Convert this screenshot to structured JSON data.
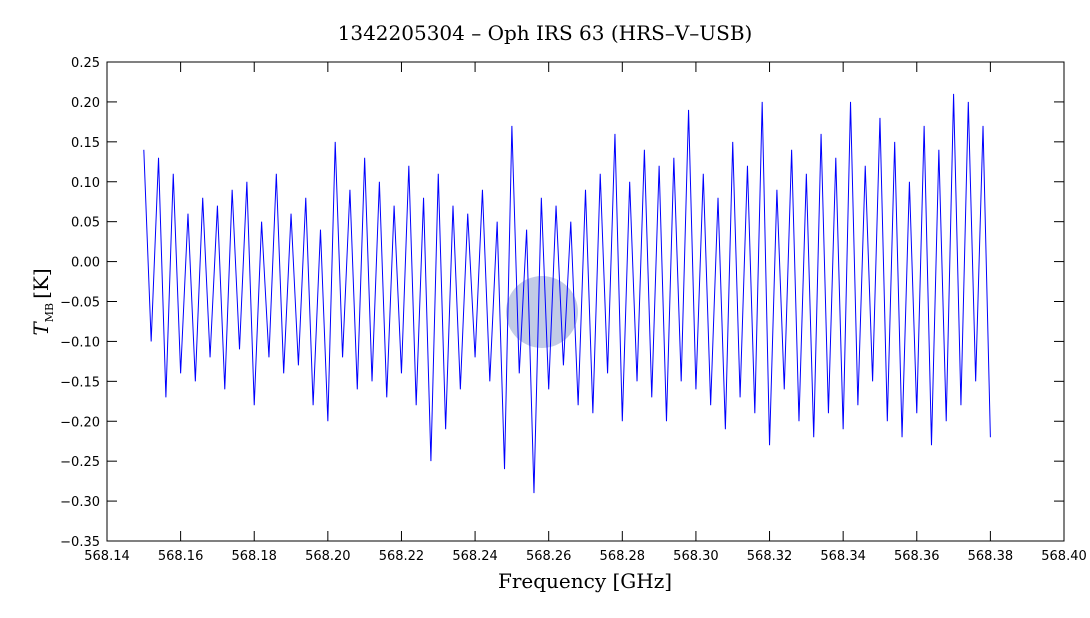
{
  "chart_data": {
    "type": "line",
    "title": "1342205304 – Oph IRS 63 (HRS–V–USB)",
    "xlabel": "Frequency [GHz]",
    "ylabel": "T",
    "ylabel_subscript": "MB",
    "ylabel_unit": "[K]",
    "x": [
      568.15,
      568.152,
      568.154,
      568.156,
      568.158,
      568.16,
      568.162,
      568.164,
      568.166,
      568.168,
      568.17,
      568.172,
      568.174,
      568.176,
      568.178,
      568.18,
      568.182,
      568.184,
      568.186,
      568.188,
      568.19,
      568.192,
      568.194,
      568.196,
      568.198,
      568.2,
      568.202,
      568.204,
      568.206,
      568.208,
      568.21,
      568.212,
      568.214,
      568.216,
      568.218,
      568.22,
      568.222,
      568.224,
      568.226,
      568.228,
      568.23,
      568.232,
      568.234,
      568.236,
      568.238,
      568.24,
      568.242,
      568.244,
      568.246,
      568.248,
      568.25,
      568.252,
      568.254,
      568.256,
      568.258,
      568.26,
      568.262,
      568.264,
      568.266,
      568.268,
      568.27,
      568.272,
      568.274,
      568.276,
      568.278,
      568.28,
      568.282,
      568.284,
      568.286,
      568.288,
      568.29,
      568.292,
      568.294,
      568.296,
      568.298,
      568.3,
      568.302,
      568.304,
      568.306,
      568.308,
      568.31,
      568.312,
      568.314,
      568.316,
      568.318,
      568.32,
      568.322,
      568.324,
      568.326,
      568.328,
      568.33,
      568.332,
      568.334,
      568.336,
      568.338,
      568.34,
      568.342,
      568.344,
      568.346,
      568.348,
      568.35,
      568.352,
      568.354,
      568.356,
      568.358,
      568.36,
      568.362,
      568.364,
      568.366,
      568.368,
      568.37,
      568.372,
      568.374,
      568.376,
      568.378,
      568.38
    ],
    "series": [
      {
        "color": "#0000ff",
        "values": [
          0.14,
          -0.1,
          0.13,
          -0.17,
          0.11,
          -0.14,
          0.06,
          -0.15,
          0.08,
          -0.12,
          0.07,
          -0.16,
          0.09,
          -0.11,
          0.1,
          -0.18,
          0.05,
          -0.12,
          0.11,
          -0.14,
          0.06,
          -0.13,
          0.08,
          -0.18,
          0.04,
          -0.2,
          0.15,
          -0.12,
          0.09,
          -0.16,
          0.13,
          -0.15,
          0.1,
          -0.17,
          0.07,
          -0.14,
          0.12,
          -0.18,
          0.08,
          -0.25,
          0.11,
          -0.21,
          0.07,
          -0.16,
          0.06,
          -0.12,
          0.09,
          -0.15,
          0.05,
          -0.26,
          0.17,
          -0.14,
          0.04,
          -0.29,
          0.08,
          -0.16,
          0.07,
          -0.13,
          0.05,
          -0.18,
          0.09,
          -0.19,
          0.11,
          -0.14,
          0.16,
          -0.2,
          0.1,
          -0.15,
          0.14,
          -0.17,
          0.12,
          -0.2,
          0.13,
          -0.15,
          0.19,
          -0.16,
          0.11,
          -0.18,
          0.08,
          -0.21,
          0.15,
          -0.17,
          0.12,
          -0.19,
          0.2,
          -0.23,
          0.09,
          -0.16,
          0.14,
          -0.2,
          0.11,
          -0.22,
          0.16,
          -0.19,
          0.13,
          -0.21,
          0.2,
          -0.18,
          0.12,
          -0.15,
          0.18,
          -0.2,
          0.15,
          -0.22,
          0.1,
          -0.19,
          0.17,
          -0.23,
          0.14,
          -0.2,
          0.21,
          -0.18,
          0.2,
          -0.15,
          0.17,
          -0.22
        ]
      }
    ],
    "xlim": [
      568.14,
      568.4
    ],
    "xticks": [
      {
        "value": 568.14,
        "label": "568.14"
      },
      {
        "value": 568.16,
        "label": "568.16"
      },
      {
        "value": 568.18,
        "label": "568.18"
      },
      {
        "value": 568.2,
        "label": "568.20"
      },
      {
        "value": 568.22,
        "label": "568.22"
      },
      {
        "value": 568.24,
        "label": "568.24"
      },
      {
        "value": 568.26,
        "label": "568.26"
      },
      {
        "value": 568.28,
        "label": "568.28"
      },
      {
        "value": 568.3,
        "label": "568.30"
      },
      {
        "value": 568.32,
        "label": "568.32"
      },
      {
        "value": 568.34,
        "label": "568.34"
      },
      {
        "value": 568.36,
        "label": "568.36"
      },
      {
        "value": 568.38,
        "label": "568.38"
      },
      {
        "value": 568.4,
        "label": "568.40"
      }
    ],
    "ylim": [
      -0.35,
      0.25
    ],
    "yticks": [
      {
        "value": -0.35,
        "label": "−0.35"
      },
      {
        "value": -0.3,
        "label": "−0.30"
      },
      {
        "value": -0.25,
        "label": "−0.25"
      },
      {
        "value": -0.2,
        "label": "−0.20"
      },
      {
        "value": -0.15,
        "label": "−0.15"
      },
      {
        "value": -0.1,
        "label": "−0.10"
      },
      {
        "value": -0.05,
        "label": "−0.05"
      },
      {
        "value": 0,
        "label": "0.00"
      },
      {
        "value": 0.05,
        "label": "0.05"
      },
      {
        "value": 0.1,
        "label": "0.10"
      },
      {
        "value": 0.15,
        "label": "0.15"
      },
      {
        "value": 0.2,
        "label": "0.20"
      },
      {
        "value": 0.25,
        "label": "0.25"
      }
    ]
  }
}
